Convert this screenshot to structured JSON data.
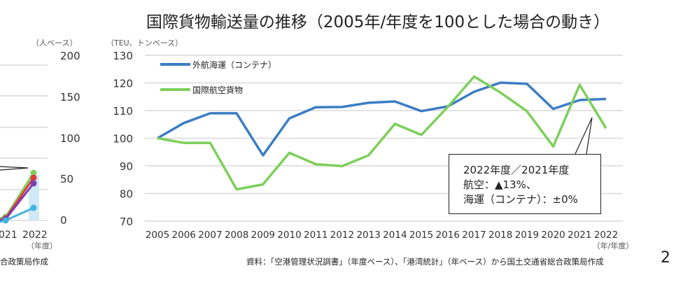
{
  "title": "国際貨物輸送量の推移（2005年/年度を100とした場合の動き）",
  "page_number": "2",
  "left_chart": {
    "axis_unit": "（人ベース）",
    "y_ticks": [
      "200",
      "150",
      "100",
      "50",
      "0"
    ],
    "x_ticks": [
      "021",
      "2022"
    ],
    "x_unit": "（年度）",
    "source_fragment": "合政策局作成"
  },
  "chart_data": {
    "type": "line",
    "title": "国際貨物輸送量の推移（2005年/年度を100とした場合の動き）",
    "ylabel": "（TEU、トンベース）",
    "xlabel": "（年/年度）",
    "ylim": [
      70,
      130
    ],
    "y_ticks": [
      "130",
      "120",
      "110",
      "100",
      "90",
      "80",
      "70"
    ],
    "grid": true,
    "legend_placement": "top-left",
    "x": [
      "2005",
      "2006",
      "2007",
      "2008",
      "2009",
      "2010",
      "2011",
      "2012",
      "2013",
      "2014",
      "2015",
      "2016",
      "2017",
      "2018",
      "2019",
      "2020",
      "2021",
      "2022"
    ],
    "series": [
      {
        "name": "外航海運（コンテナ）",
        "color": "#3b7dc4",
        "values": [
          100,
          105.5,
          109,
          109,
          93.8,
          107.2,
          111.2,
          111.3,
          112.8,
          113.3,
          109.8,
          111.5,
          116.8,
          120.1,
          119.7,
          110.6,
          113.8,
          114.2
        ]
      },
      {
        "name": "国際航空貨物",
        "color": "#7dcf5a",
        "values": [
          100,
          98.3,
          98.3,
          81.5,
          83.3,
          94.7,
          90.6,
          89.9,
          93.8,
          105.2,
          101.2,
          111.3,
          122.3,
          116.5,
          109.8,
          97.0,
          119.3,
          103.6
        ]
      }
    ],
    "annotation": {
      "line1": "2022年度／2021年度",
      "line2": "航空：▲13%、",
      "line3": "海運（コンテナ）：±0%"
    }
  },
  "source": "資料：「空港管理状況調書」（年度ベース）、「港湾統計」（年ベース）から国土交通省総合政策局作成"
}
